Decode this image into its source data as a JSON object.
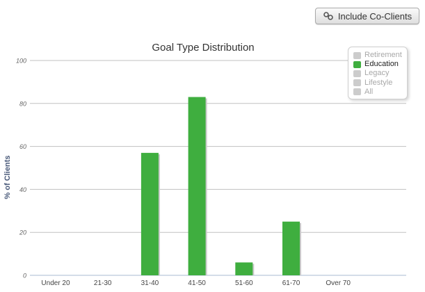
{
  "toolbar": {
    "co_clients_label": "Include Co-Clients",
    "co_clients_icon": "link-icon"
  },
  "colors": {
    "bar": "#3fae3f",
    "bar_shadow": "#c9c9c9",
    "grid": "#c0c0c0",
    "axis_text": "#666666",
    "legend_active": "#3fae3f",
    "legend_inactive": "#cccccc",
    "legend_inactive_text": "#a8a8a8"
  },
  "legend": {
    "items": [
      {
        "label": "Retirement",
        "active": false
      },
      {
        "label": "Education",
        "active": true
      },
      {
        "label": "Legacy",
        "active": false
      },
      {
        "label": "Lifestyle",
        "active": false
      },
      {
        "label": "All",
        "active": false
      }
    ]
  },
  "chart_data": {
    "type": "bar",
    "title": "Goal Type Distribution",
    "xlabel": "",
    "ylabel": "% of Clients",
    "categories": [
      "Under 20",
      "21-30",
      "31-40",
      "41-50",
      "51-60",
      "61-70",
      "Over 70"
    ],
    "series": [
      {
        "name": "Education",
        "values": [
          0,
          0,
          57,
          83,
          6,
          25,
          0
        ]
      }
    ],
    "ylim": [
      0,
      100
    ],
    "yticks": [
      0,
      20,
      40,
      60,
      80,
      100
    ],
    "grid": true,
    "legend_position": "top-right"
  }
}
